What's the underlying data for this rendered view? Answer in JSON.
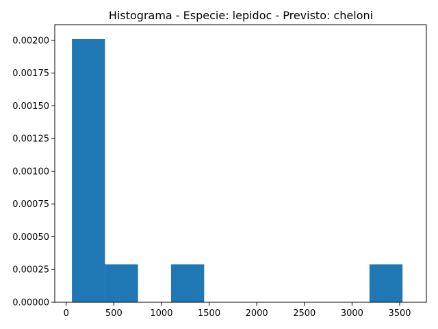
{
  "chart_data": {
    "type": "bar",
    "title": "Histograma - Especie: lepidoc - Previsto: cheloni",
    "xlabel": "",
    "ylabel": "",
    "xlim": [
      -120,
      3780
    ],
    "ylim": [
      0,
      0.00212
    ],
    "bins": [
      {
        "x0": 60,
        "x1": 407,
        "value": 0.00201
      },
      {
        "x0": 407,
        "x1": 754,
        "value": 0.00029
      },
      {
        "x0": 754,
        "x1": 1101,
        "value": 0
      },
      {
        "x0": 1101,
        "x1": 1448,
        "value": 0.00029
      },
      {
        "x0": 1448,
        "x1": 1795,
        "value": 0
      },
      {
        "x0": 1795,
        "x1": 2142,
        "value": 0
      },
      {
        "x0": 2142,
        "x1": 2489,
        "value": 0
      },
      {
        "x0": 2489,
        "x1": 2836,
        "value": 0
      },
      {
        "x0": 2836,
        "x1": 3183,
        "value": 0
      },
      {
        "x0": 3183,
        "x1": 3530,
        "value": 0.00029
      }
    ],
    "xticks": [
      {
        "value": 0,
        "label": "0"
      },
      {
        "value": 500,
        "label": "500"
      },
      {
        "value": 1000,
        "label": "1000"
      },
      {
        "value": 1500,
        "label": "1500"
      },
      {
        "value": 2000,
        "label": "2000"
      },
      {
        "value": 2500,
        "label": "2500"
      },
      {
        "value": 3000,
        "label": "3000"
      },
      {
        "value": 3500,
        "label": "3500"
      }
    ],
    "yticks": [
      {
        "value": 0,
        "label": "0.00000"
      },
      {
        "value": 0.00025,
        "label": "0.00025"
      },
      {
        "value": 0.0005,
        "label": "0.00050"
      },
      {
        "value": 0.00075,
        "label": "0.00075"
      },
      {
        "value": 0.001,
        "label": "0.00100"
      },
      {
        "value": 0.00125,
        "label": "0.00125"
      },
      {
        "value": 0.0015,
        "label": "0.00150"
      },
      {
        "value": 0.00175,
        "label": "0.00175"
      },
      {
        "value": 0.002,
        "label": "0.00200"
      }
    ],
    "grid": false,
    "bar_color": "#1f77b4"
  }
}
